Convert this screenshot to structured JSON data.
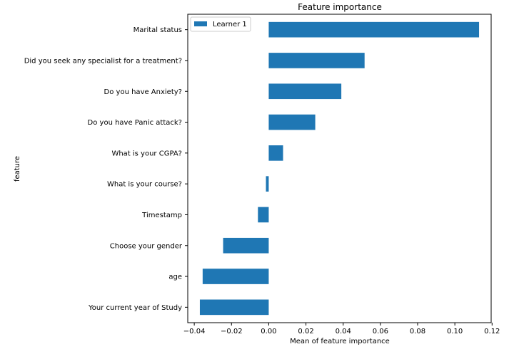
{
  "chart_data": {
    "type": "bar",
    "orientation": "horizontal",
    "title": "Feature importance",
    "xlabel": "Mean of feature importance",
    "ylabel": "feature",
    "categories": [
      "Marital status",
      "Did you seek any specialist for a treatment?",
      "Do you have Anxiety?",
      "Do you have Panic attack?",
      "What is your CGPA?",
      "What is your course?",
      "Timestamp",
      "Choose your gender",
      "age",
      "Your current year of Study"
    ],
    "series": [
      {
        "name": "Learner 1",
        "color": "#1f77b4",
        "values": [
          0.113,
          0.0515,
          0.039,
          0.025,
          0.0077,
          -0.0015,
          -0.0058,
          -0.0245,
          -0.0355,
          -0.037
        ]
      }
    ],
    "xlim": [
      -0.0435,
      0.1195
    ],
    "xticks": [
      -0.04,
      -0.02,
      0.0,
      0.02,
      0.04,
      0.06,
      0.08,
      0.1,
      0.12
    ],
    "xtick_labels": [
      "−0.04",
      "−0.02",
      "0.00",
      "0.02",
      "0.04",
      "0.06",
      "0.08",
      "0.10",
      "0.12"
    ],
    "grid": false,
    "legend_position": "top-left"
  }
}
